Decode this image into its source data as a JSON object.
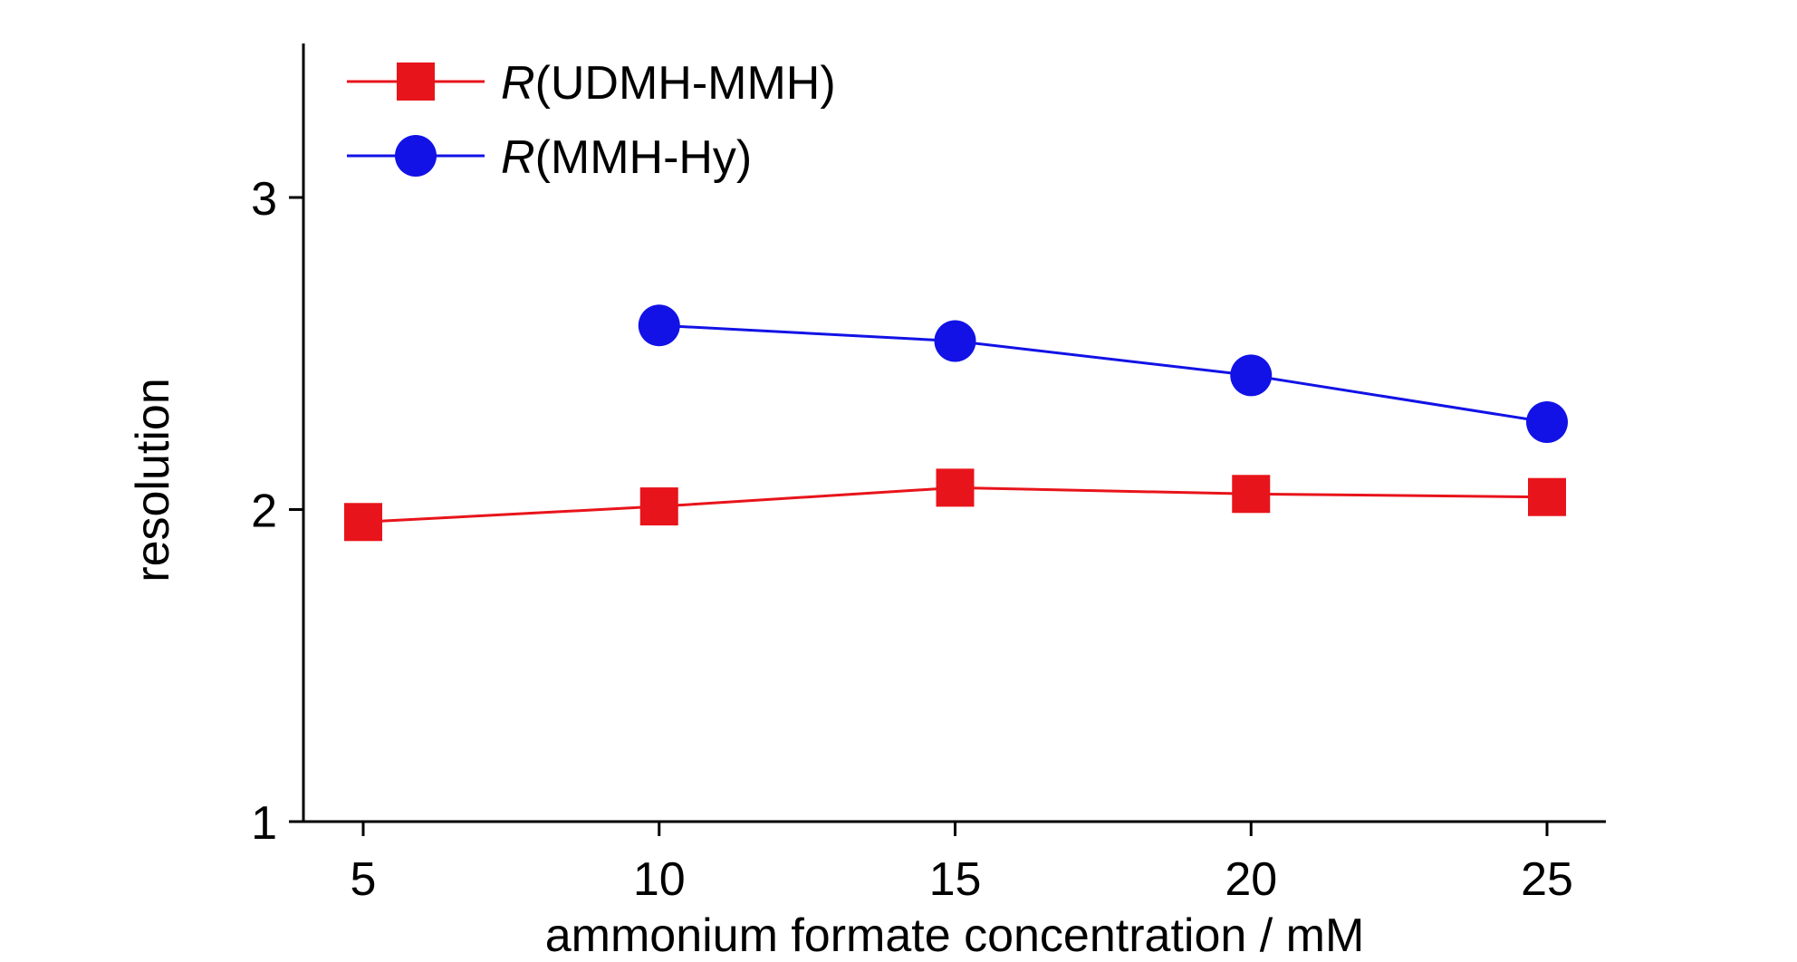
{
  "chart_data": {
    "type": "line",
    "xlabel": "ammonium formate concentration / mM",
    "ylabel": "resolution",
    "xlim": [
      4,
      26
    ],
    "ylim": [
      1,
      3.5
    ],
    "xticks": [
      5,
      10,
      15,
      20,
      25
    ],
    "yticks": [
      1,
      2,
      3
    ],
    "grid": false,
    "legend_position": "top-left",
    "series": [
      {
        "name_italic": "R",
        "name_rest": "(UDMH-MMH)",
        "color": "#e8141b",
        "marker": "square",
        "x": [
          5,
          10,
          15,
          20,
          25
        ],
        "y": [
          1.96,
          2.01,
          2.07,
          2.05,
          2.04
        ]
      },
      {
        "name_italic": "R",
        "name_rest": "(MMH-Hy)",
        "color": "#1212e6",
        "marker": "circle",
        "x": [
          10,
          15,
          20,
          25
        ],
        "y": [
          2.59,
          2.54,
          2.43,
          2.28
        ]
      }
    ]
  }
}
